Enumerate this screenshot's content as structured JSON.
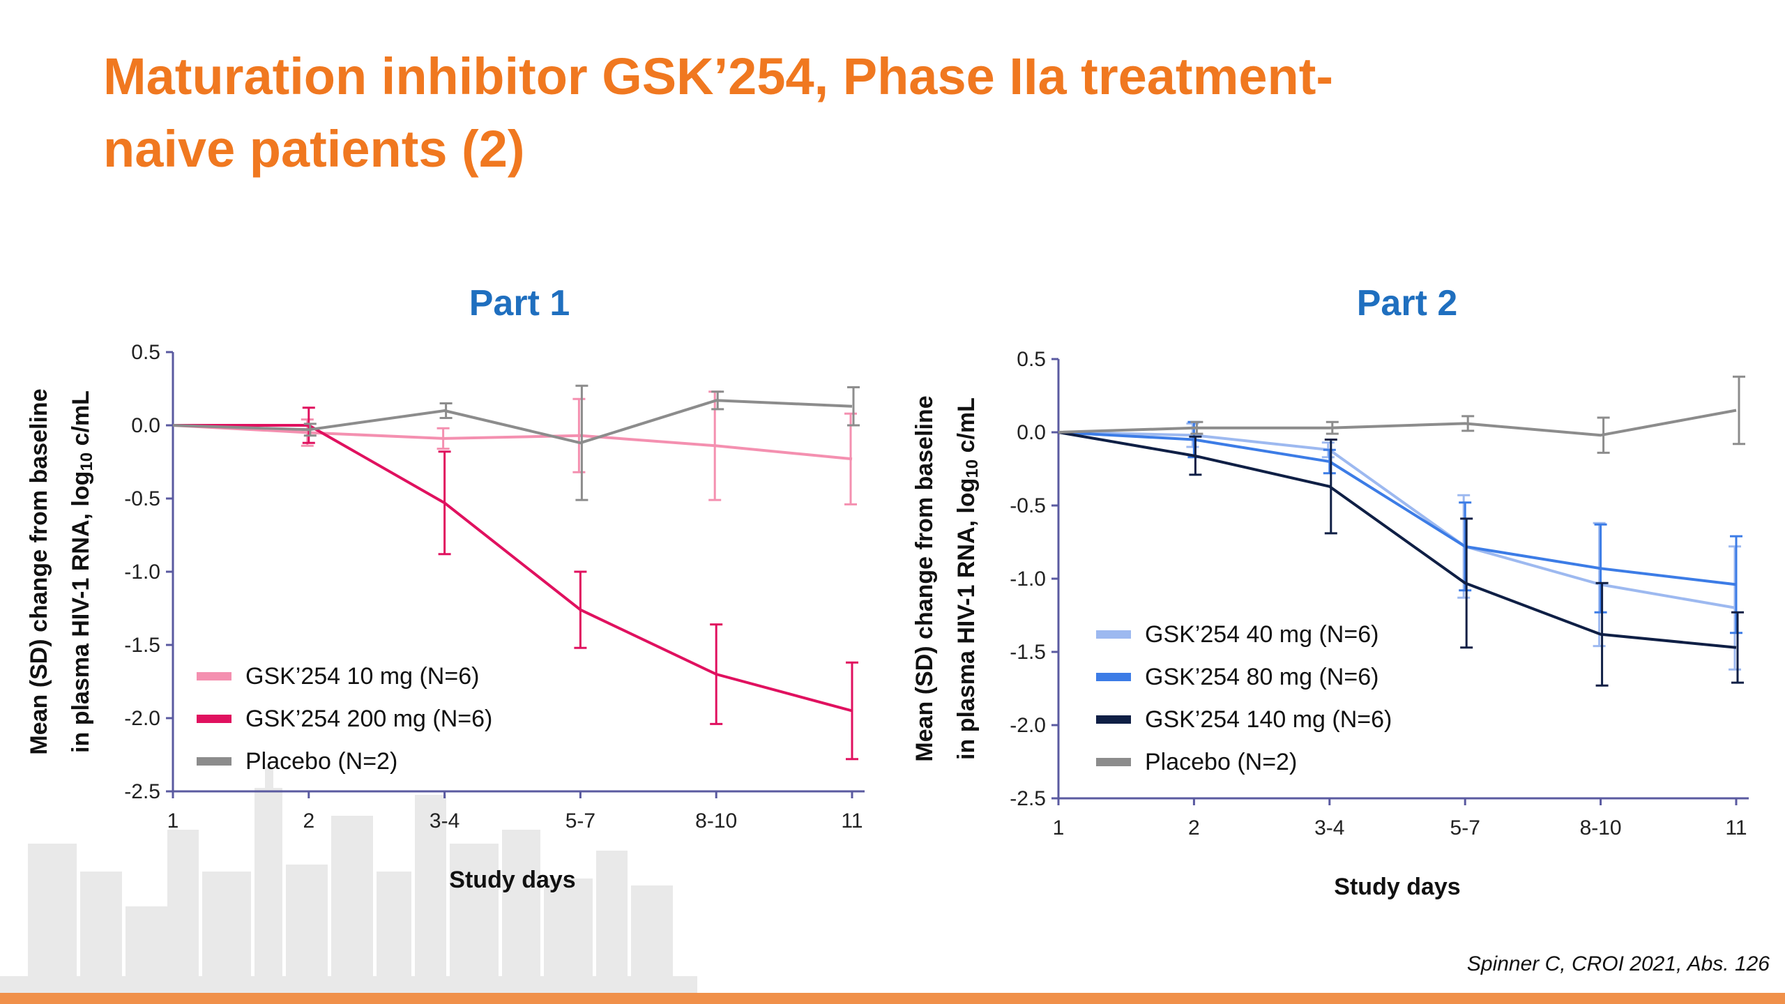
{
  "slide": {
    "title": "Maturation inhibitor GSK’254, Phase IIa treatment-naive patients (2)",
    "source": "Spinner C, CROI 2021, Abs. 126"
  },
  "colors": {
    "title": "#F07820",
    "panel_title": "#1F6FBF",
    "bottom_bar": "#F0904A"
  },
  "chart_data": [
    {
      "type": "line",
      "title": "Part 1",
      "xlabel": "Study days",
      "ylabel_line1": "Mean (SD) change from baseline",
      "ylabel_line2_prefix": "in plasma HIV-1 RNA, log",
      "ylabel_line2_sub": "10",
      "ylabel_line2_suffix": " c/mL",
      "categories": [
        "1",
        "2",
        "3-4",
        "5-7",
        "8-10",
        "11"
      ],
      "ylim": [
        -2.5,
        0.5
      ],
      "yticks": [
        "0.5",
        "0.0",
        "-0.5",
        "-1.0",
        "-1.5",
        "-2.0",
        "-2.5"
      ],
      "legend_position": "bottom-left",
      "series": [
        {
          "name": "GSK’254 10 mg (N=6)",
          "color": "#F490B0",
          "values": [
            0.0,
            -0.05,
            -0.09,
            -0.07,
            -0.14,
            -0.23
          ],
          "sd": [
            0,
            0.09,
            0.07,
            0.25,
            0.37,
            0.31
          ]
        },
        {
          "name": "GSK’254 200 mg (N=6)",
          "color": "#E0115F",
          "values": [
            0.0,
            0.0,
            -0.53,
            -1.26,
            -1.7,
            -1.95
          ],
          "sd": [
            0,
            0.12,
            0.35,
            0.26,
            0.34,
            0.33
          ]
        },
        {
          "name": "Placebo (N=2)",
          "color": "#8C8C8C",
          "values": [
            0.0,
            -0.03,
            0.1,
            -0.12,
            0.17,
            0.13
          ],
          "sd": [
            0,
            0.04,
            0.05,
            0.39,
            0.06,
            0.13
          ]
        }
      ]
    },
    {
      "type": "line",
      "title": "Part 2",
      "xlabel": "Study days",
      "ylabel_line1": "Mean (SD) change from baseline",
      "ylabel_line2_prefix": "in plasma HIV-1 RNA, log",
      "ylabel_line2_sub": "10",
      "ylabel_line2_suffix": " c/mL",
      "categories": [
        "1",
        "2",
        "3-4",
        "5-7",
        "8-10",
        "11"
      ],
      "ylim": [
        -2.5,
        0.5
      ],
      "yticks": [
        "0.5",
        "0.0",
        "-0.5",
        "-1.0",
        "-1.5",
        "-2.0",
        "-2.5"
      ],
      "legend_position": "bottom-left",
      "series": [
        {
          "name": "GSK’254 40 mg (N=6)",
          "color": "#9DB9F0",
          "values": [
            0.0,
            -0.02,
            -0.12,
            -0.78,
            -1.04,
            -1.2
          ],
          "sd": [
            0,
            0.08,
            0.05,
            0.35,
            0.42,
            0.42
          ]
        },
        {
          "name": "GSK’254 80 mg (N=6)",
          "color": "#3C7CE6",
          "values": [
            0.0,
            -0.05,
            -0.2,
            -0.78,
            -0.93,
            -1.04
          ],
          "sd": [
            0,
            0.12,
            0.08,
            0.3,
            0.3,
            0.33
          ]
        },
        {
          "name": "GSK’254 140 mg (N=6)",
          "color": "#0F1F45",
          "values": [
            0.0,
            -0.16,
            -0.37,
            -1.03,
            -1.38,
            -1.47
          ],
          "sd": [
            0,
            0.13,
            0.32,
            0.44,
            0.35,
            0.24
          ]
        },
        {
          "name": "Placebo (N=2)",
          "color": "#8C8C8C",
          "values": [
            0.0,
            0.03,
            0.03,
            0.06,
            -0.02,
            0.15
          ],
          "sd": [
            0,
            0.04,
            0.04,
            0.05,
            0.12,
            0.23
          ]
        }
      ]
    }
  ]
}
